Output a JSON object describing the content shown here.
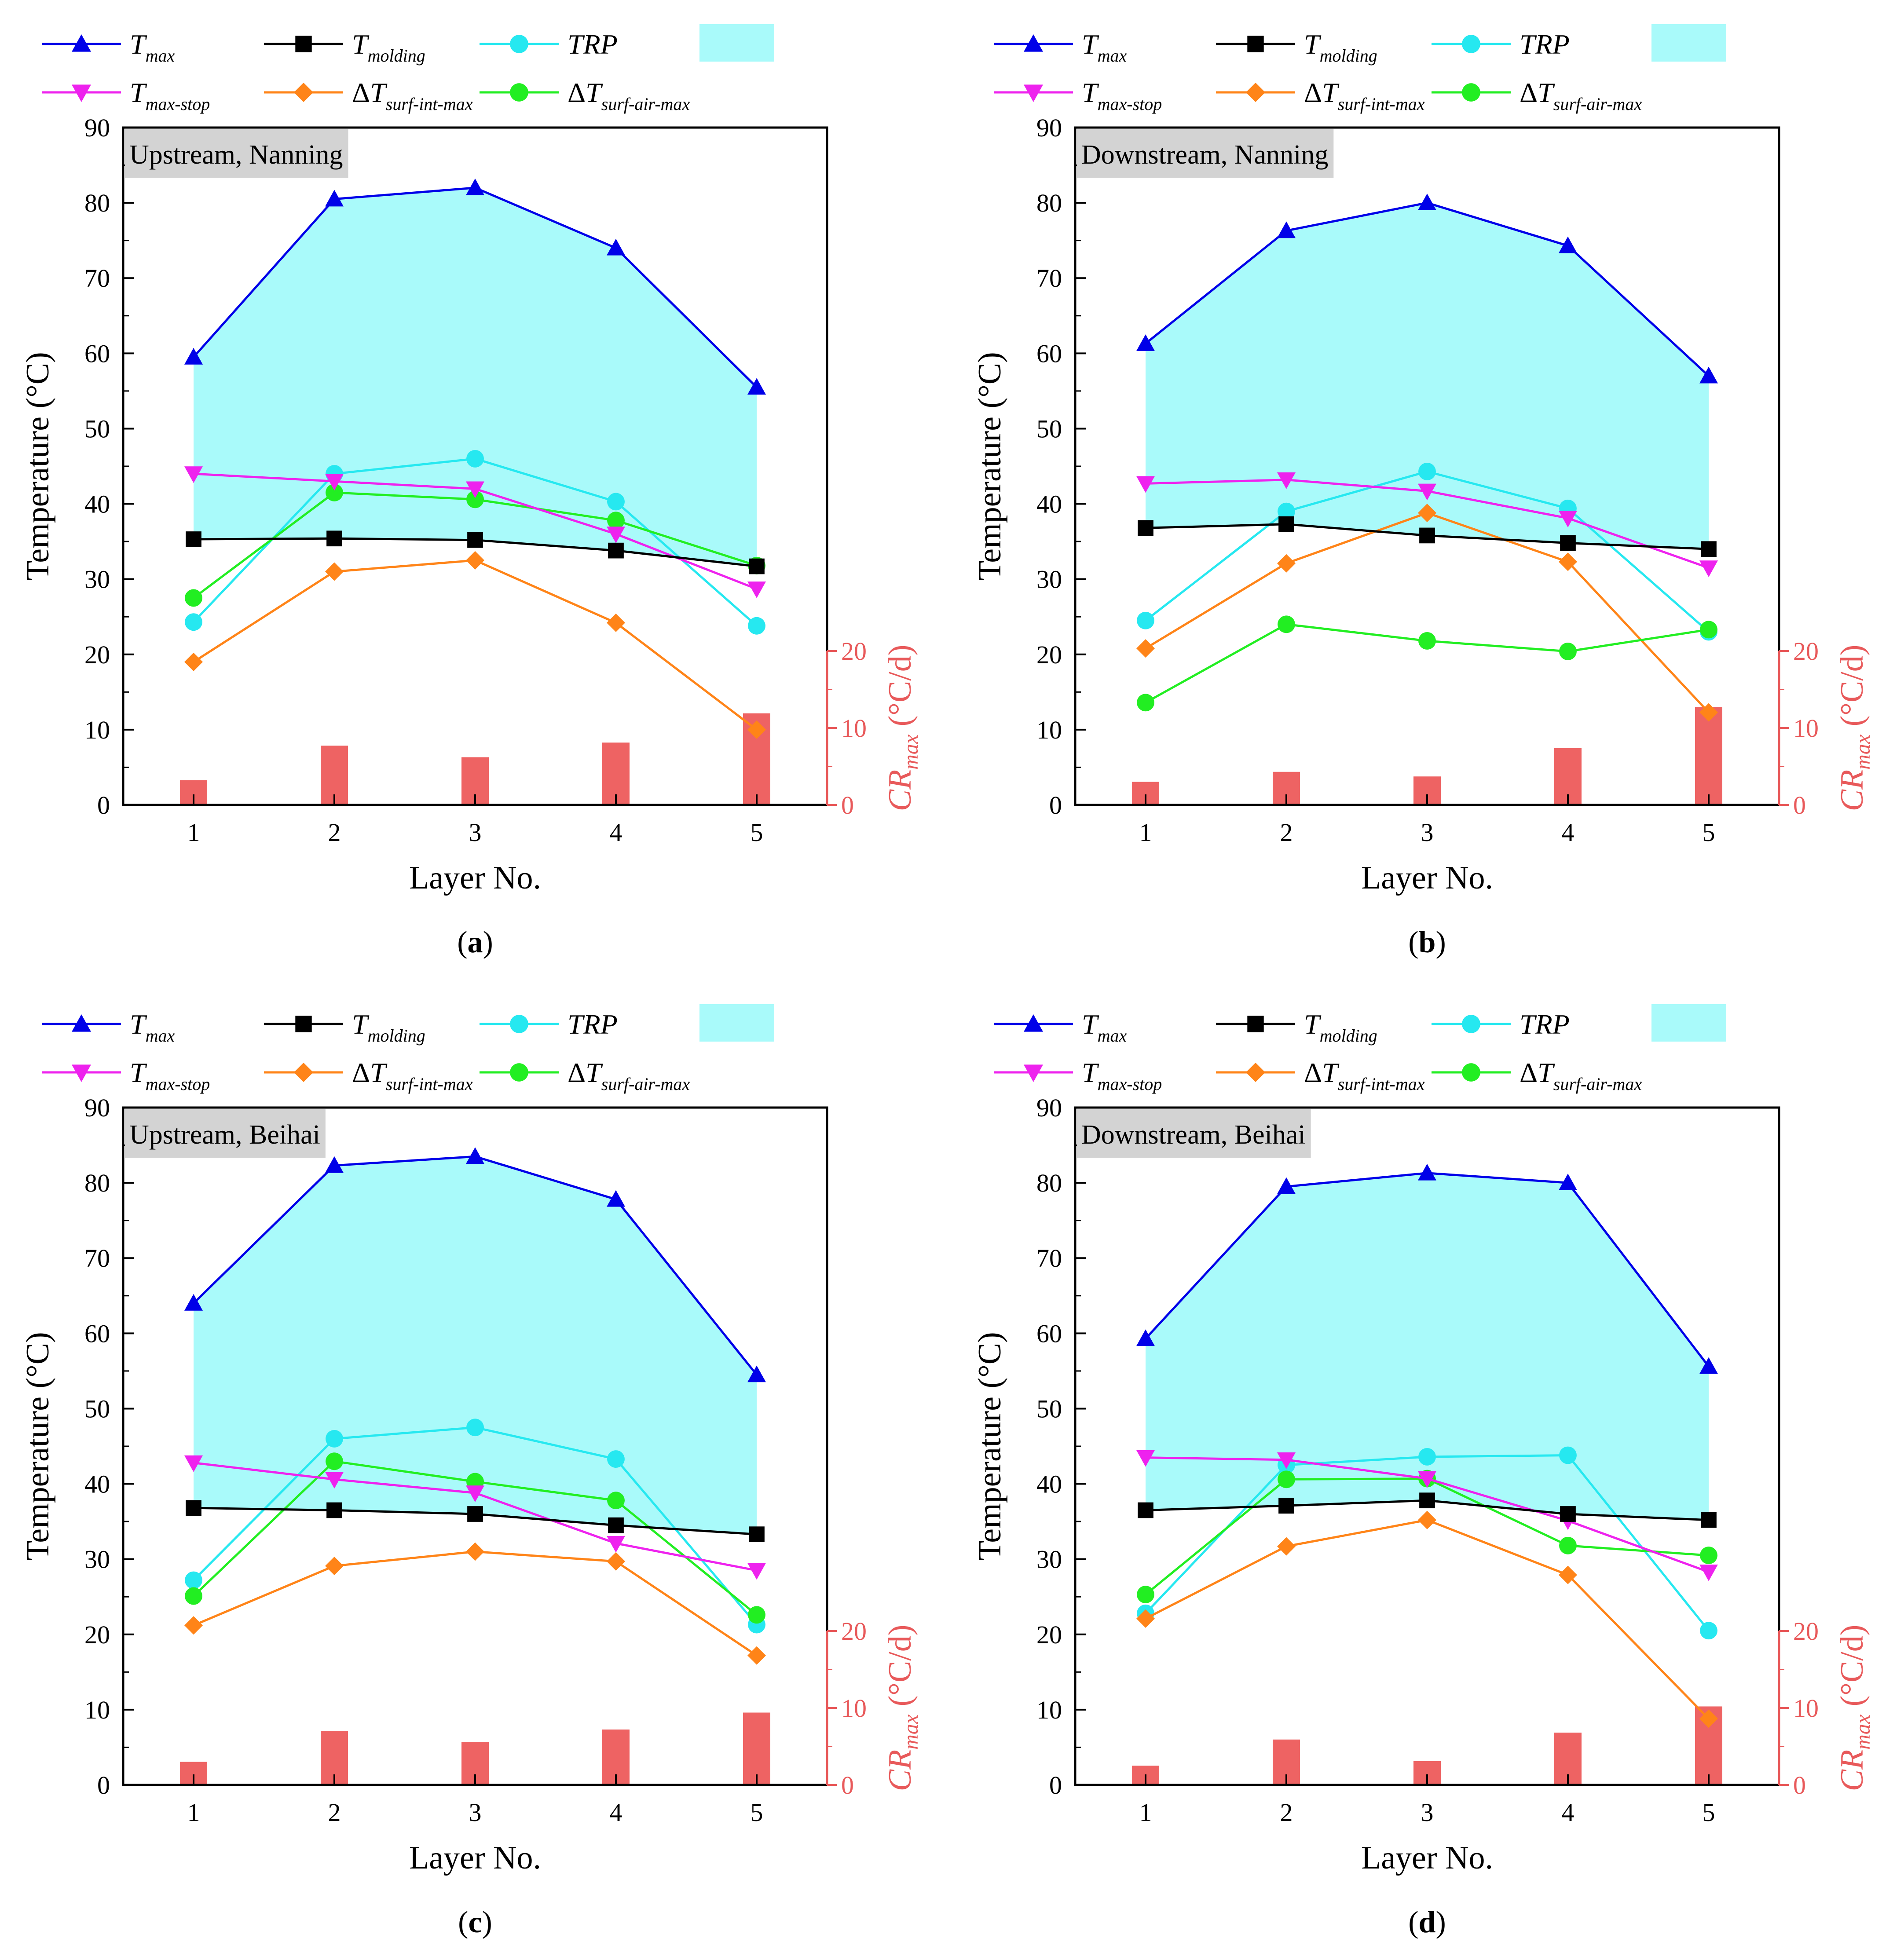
{
  "figure": {
    "x_axis_label": "Layer No.",
    "y_axis_label": "Temperature (°C)",
    "y2_axis_label": "CR",
    "y2_axis_sub": "max",
    "y2_axis_unit": " (°C/d)",
    "legend": [
      {
        "key": "tmax",
        "main": "T",
        "sub": "max",
        "color": "#0000e8",
        "marker": "triangle-up"
      },
      {
        "key": "tmolding",
        "main": "T",
        "sub": "molding",
        "color": "#000000",
        "marker": "square"
      },
      {
        "key": "trp",
        "main": "TRP",
        "sub": "",
        "color": "#26e8f0",
        "marker": "circle"
      },
      {
        "key": "tmaxstop",
        "main": "T",
        "sub": "max-stop",
        "color": "#ee22ee",
        "marker": "triangle-down"
      },
      {
        "key": "dtsurfint",
        "main": "ΔT",
        "sub": "surf-int-max",
        "color": "#ff8418",
        "marker": "diamond"
      },
      {
        "key": "dtsurfair",
        "main": "ΔT",
        "sub": "surf-air-max",
        "color": "#22ee22",
        "marker": "circle"
      }
    ],
    "colors": {
      "band": "#a9fafa",
      "bar": "#ee6363",
      "cr_axis": "#e8595a"
    }
  },
  "chart_data": [
    {
      "type": "line",
      "panel": "a",
      "caption": "(a)",
      "title": "Upstream, Nanning",
      "categories": [
        1,
        2,
        3,
        4,
        5
      ],
      "x_ticks": [
        "1",
        "2",
        "3",
        "4",
        "5"
      ],
      "ylim": [
        0,
        90
      ],
      "y_ticks": [
        0,
        10,
        20,
        30,
        40,
        50,
        60,
        70,
        80,
        90
      ],
      "y2lim": [
        0,
        20
      ],
      "y2_ticks": [
        0,
        10,
        20
      ],
      "series": [
        {
          "name": "Tmax",
          "values": [
            59.5,
            80.5,
            82,
            74,
            55.5
          ]
        },
        {
          "name": "Tmolding",
          "values": [
            35.3,
            35.4,
            35.2,
            33.8,
            31.7
          ]
        },
        {
          "name": "TRP",
          "values": [
            24.3,
            44,
            46,
            40.3,
            23.8
          ]
        },
        {
          "name": "Tmax-stop",
          "values": [
            44,
            43,
            42,
            36,
            28.7
          ]
        },
        {
          "name": "ΔTsurf-int-max",
          "values": [
            19,
            31,
            32.5,
            24.2,
            10
          ]
        },
        {
          "name": "ΔTsurf-air-max",
          "values": [
            27.5,
            41.5,
            40.6,
            37.8,
            31.8
          ]
        }
      ],
      "band": {
        "name": "Tmax to Tmolding",
        "upper": "Tmax",
        "lower": "Tmolding"
      },
      "bars": {
        "name": "CRmax",
        "values": [
          3.2,
          7.7,
          6.2,
          8.1,
          11.9
        ]
      }
    },
    {
      "type": "line",
      "panel": "b",
      "caption": "(b)",
      "title": "Downstream, Nanning",
      "categories": [
        1,
        2,
        3,
        4,
        5
      ],
      "x_ticks": [
        "1",
        "2",
        "3",
        "4",
        "5"
      ],
      "ylim": [
        0,
        90
      ],
      "y_ticks": [
        0,
        10,
        20,
        30,
        40,
        50,
        60,
        70,
        80,
        90
      ],
      "y2lim": [
        0,
        20
      ],
      "y2_ticks": [
        0,
        10,
        20
      ],
      "series": [
        {
          "name": "Tmax",
          "values": [
            61.3,
            76.3,
            80,
            74.3,
            57
          ]
        },
        {
          "name": "Tmolding",
          "values": [
            36.8,
            37.3,
            35.8,
            34.8,
            34
          ]
        },
        {
          "name": "TRP",
          "values": [
            24.5,
            39,
            44.3,
            39.4,
            23
          ]
        },
        {
          "name": "Tmax-stop",
          "values": [
            42.7,
            43.2,
            41.7,
            38.1,
            31.5
          ]
        },
        {
          "name": "ΔTsurf-int-max",
          "values": [
            20.8,
            32.1,
            38.8,
            32.3,
            12.3
          ]
        },
        {
          "name": "ΔTsurf-air-max",
          "values": [
            13.6,
            24,
            21.8,
            20.4,
            23.3
          ]
        }
      ],
      "band": {
        "name": "Tmax to Tmolding",
        "upper": "Tmax",
        "lower": "Tmolding"
      },
      "bars": {
        "name": "CRmax",
        "values": [
          3,
          4.3,
          3.7,
          7.4,
          12.7
        ]
      }
    },
    {
      "type": "line",
      "panel": "c",
      "caption": "(c)",
      "title": "Upstream, Beihai",
      "categories": [
        1,
        2,
        3,
        4,
        5
      ],
      "x_ticks": [
        "1",
        "2",
        "3",
        "4",
        "5"
      ],
      "ylim": [
        0,
        90
      ],
      "y_ticks": [
        0,
        10,
        20,
        30,
        40,
        50,
        60,
        70,
        80,
        90
      ],
      "y2lim": [
        0,
        20
      ],
      "y2_ticks": [
        0,
        10,
        20
      ],
      "series": [
        {
          "name": "Tmax",
          "values": [
            64,
            82.3,
            83.5,
            77.8,
            54.5
          ]
        },
        {
          "name": "Tmolding",
          "values": [
            36.8,
            36.5,
            36,
            34.5,
            33.3
          ]
        },
        {
          "name": "TRP",
          "values": [
            27.2,
            46,
            47.5,
            43.3,
            21.3
          ]
        },
        {
          "name": "Tmax-stop",
          "values": [
            42.8,
            40.6,
            38.8,
            32.1,
            28.5
          ]
        },
        {
          "name": "ΔTsurf-int-max",
          "values": [
            21.2,
            29.1,
            31,
            29.7,
            17.2
          ]
        },
        {
          "name": "ΔTsurf-air-max",
          "values": [
            25.1,
            43,
            40.3,
            37.8,
            22.6
          ]
        }
      ],
      "band": {
        "name": "Tmax to Tmolding",
        "upper": "Tmax",
        "lower": "Tmolding"
      },
      "bars": {
        "name": "CRmax",
        "values": [
          3,
          7,
          5.6,
          7.2,
          9.4
        ]
      }
    },
    {
      "type": "line",
      "panel": "d",
      "caption": "(d)",
      "title": "Downstream, Beihai",
      "categories": [
        1,
        2,
        3,
        4,
        5
      ],
      "x_ticks": [
        "1",
        "2",
        "3",
        "4",
        "5"
      ],
      "ylim": [
        0,
        90
      ],
      "y_ticks": [
        0,
        10,
        20,
        30,
        40,
        50,
        60,
        70,
        80,
        90
      ],
      "y2lim": [
        0,
        20
      ],
      "y2_ticks": [
        0,
        10,
        20
      ],
      "series": [
        {
          "name": "Tmax",
          "values": [
            59.3,
            79.5,
            81.3,
            80,
            55.6
          ]
        },
        {
          "name": "Tmolding",
          "values": [
            36.5,
            37.1,
            37.8,
            36,
            35.2
          ]
        },
        {
          "name": "TRP",
          "values": [
            22.8,
            42.5,
            43.6,
            43.8,
            20.5
          ]
        },
        {
          "name": "Tmax-stop",
          "values": [
            43.5,
            43.2,
            40.7,
            35.1,
            28.3
          ]
        },
        {
          "name": "ΔTsurf-int-max",
          "values": [
            22.1,
            31.7,
            35.2,
            27.9,
            8.8
          ]
        },
        {
          "name": "ΔTsurf-air-max",
          "values": [
            25.3,
            40.6,
            40.7,
            31.8,
            30.5
          ]
        }
      ],
      "band": {
        "name": "Tmax to Tmolding",
        "upper": "Tmax",
        "lower": "Tmolding"
      },
      "bars": {
        "name": "CRmax",
        "values": [
          2.5,
          5.9,
          3.1,
          6.8,
          10.2
        ]
      }
    }
  ]
}
